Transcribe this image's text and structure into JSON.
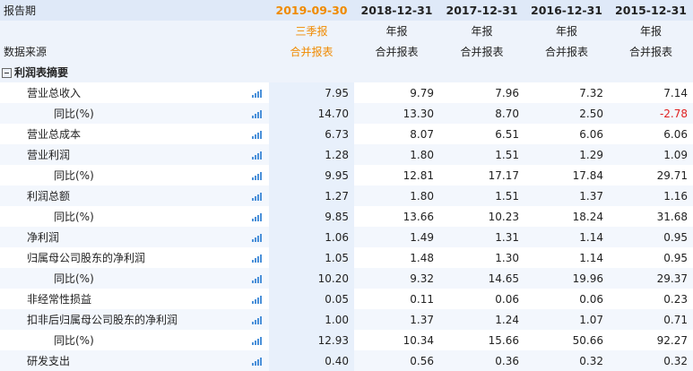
{
  "header": {
    "period_label": "报告期",
    "source_label": "数据来源",
    "dates": [
      "2019-09-30",
      "2018-12-31",
      "2017-12-31",
      "2016-12-31",
      "2015-12-31"
    ],
    "report_types": [
      "三季报",
      "年报",
      "年报",
      "年报",
      "年报"
    ],
    "sources": [
      "合并报表",
      "合并报表",
      "合并报表",
      "合并报表",
      "合并报表"
    ]
  },
  "section": {
    "title": "利润表摘要"
  },
  "rows": [
    {
      "label": "营业总收入",
      "values": [
        "7.95",
        "9.79",
        "7.96",
        "7.32",
        "7.14"
      ]
    },
    {
      "label": "同比(%)",
      "values": [
        "14.70",
        "13.30",
        "8.70",
        "2.50",
        "-2.78"
      ]
    },
    {
      "label": "营业总成本",
      "values": [
        "6.73",
        "8.07",
        "6.51",
        "6.06",
        "6.06"
      ]
    },
    {
      "label": "营业利润",
      "values": [
        "1.28",
        "1.80",
        "1.51",
        "1.29",
        "1.09"
      ]
    },
    {
      "label": "同比(%)",
      "values": [
        "9.95",
        "12.81",
        "17.17",
        "17.84",
        "29.71"
      ]
    },
    {
      "label": "利润总额",
      "values": [
        "1.27",
        "1.80",
        "1.51",
        "1.37",
        "1.16"
      ]
    },
    {
      "label": "同比(%)",
      "values": [
        "9.85",
        "13.66",
        "10.23",
        "18.24",
        "31.68"
      ]
    },
    {
      "label": "净利润",
      "values": [
        "1.06",
        "1.49",
        "1.31",
        "1.14",
        "0.95"
      ]
    },
    {
      "label": "归属母公司股东的净利润",
      "values": [
        "1.05",
        "1.48",
        "1.30",
        "1.14",
        "0.95"
      ]
    },
    {
      "label": "同比(%)",
      "values": [
        "10.20",
        "9.32",
        "14.65",
        "19.96",
        "29.37"
      ]
    },
    {
      "label": "非经常性损益",
      "values": [
        "0.05",
        "0.11",
        "0.06",
        "0.06",
        "0.23"
      ]
    },
    {
      "label": "扣非后归属母公司股东的净利润",
      "values": [
        "1.00",
        "1.37",
        "1.24",
        "1.07",
        "0.71"
      ]
    },
    {
      "label": "同比(%)",
      "values": [
        "12.93",
        "10.34",
        "15.66",
        "50.66",
        "92.27"
      ]
    },
    {
      "label": "研发支出",
      "values": [
        "0.40",
        "0.56",
        "0.36",
        "0.32",
        "0.32"
      ]
    }
  ],
  "colors": {
    "highlight": "#f08a00",
    "negative": "#e02020",
    "icon": "#4a90d9",
    "header_bg": "#dfe9f8"
  }
}
